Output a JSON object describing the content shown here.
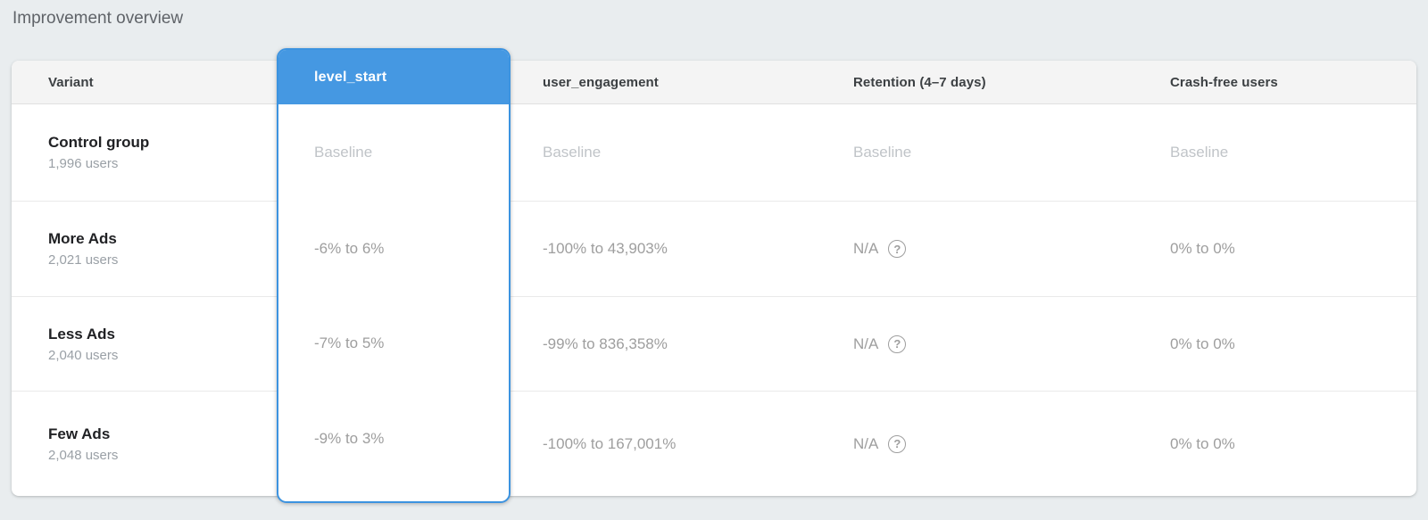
{
  "page": {
    "title": "Improvement overview"
  },
  "icons": {
    "help_glyph": "?"
  },
  "colors": {
    "accent_blue": "#4598e2",
    "page_bg": "#e9edef",
    "baseline_text": "#c0c4c8",
    "value_text": "#9e9e9e"
  },
  "table": {
    "columns": [
      {
        "label": "Variant"
      },
      {
        "label": "level_start",
        "selected": true
      },
      {
        "label": "user_engagement"
      },
      {
        "label": "Retention (4–7 days)"
      },
      {
        "label": "Crash-free users"
      }
    ],
    "rows": [
      {
        "variant": "Control group",
        "users": "1,996 users",
        "level_start": "Baseline",
        "user_engagement": "Baseline",
        "retention": "Baseline",
        "retention_help": false,
        "crash_free": "Baseline"
      },
      {
        "variant": "More Ads",
        "users": "2,021 users",
        "level_start": "-6% to 6%",
        "user_engagement": "-100% to 43,903%",
        "retention": "N/A",
        "retention_help": true,
        "crash_free": "0% to 0%"
      },
      {
        "variant": "Less Ads",
        "users": "2,040 users",
        "level_start": "-7% to 5%",
        "user_engagement": "-99% to 836,358%",
        "retention": "N/A",
        "retention_help": true,
        "crash_free": "0% to 0%"
      },
      {
        "variant": "Few Ads",
        "users": "2,048 users",
        "level_start": "-9% to 3%",
        "user_engagement": "-100% to 167,001%",
        "retention": "N/A",
        "retention_help": true,
        "crash_free": "0% to 0%"
      }
    ]
  }
}
